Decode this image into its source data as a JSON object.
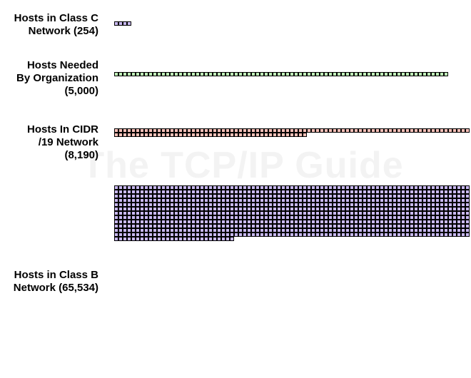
{
  "watermark": "The TCP/IP Guide",
  "colors": {
    "class_c": "#c8b8f0",
    "needed": "#c0f0b8",
    "cidr": "#f8c0b8",
    "class_b": "#c8b8f0",
    "outline": "#000000"
  },
  "rows": [
    {
      "id": "class-c",
      "label_lines": [
        "Hosts in Class C",
        "Network (254)"
      ],
      "hosts": 254,
      "color_key": "class_c"
    },
    {
      "id": "needed",
      "label_lines": [
        "Hosts Needed",
        "By Organization",
        "(5,000)"
      ],
      "hosts": 5000,
      "color_key": "needed"
    },
    {
      "id": "cidr19",
      "label_lines": [
        "Hosts In CIDR",
        "/19 Network",
        "(8,190)"
      ],
      "hosts": 8190,
      "color_key": "cidr"
    },
    {
      "id": "class-b",
      "label_lines": [
        "Hosts in Class B",
        "Network (65,534)"
      ],
      "hosts": 65534,
      "color_key": "class_b"
    }
  ]
}
